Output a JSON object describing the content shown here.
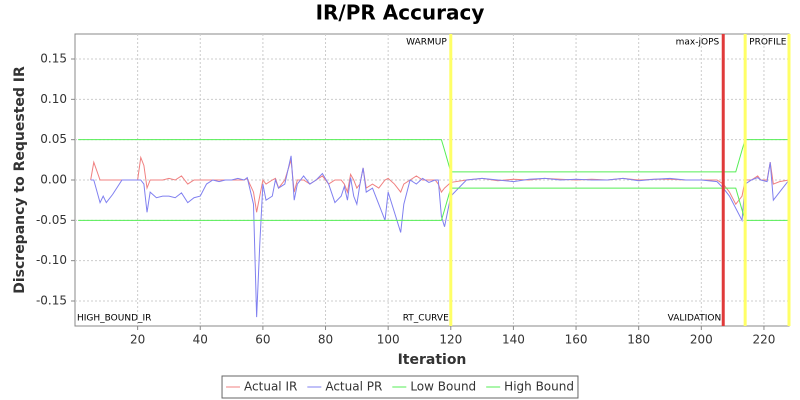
{
  "chart_data": {
    "type": "line",
    "title": "IR/PR Accuracy",
    "x_label": "Iteration",
    "y_label": "Discrepancy to Requested IR",
    "xlim": [
      0,
      228
    ],
    "xticks": [
      20,
      40,
      60,
      80,
      100,
      120,
      140,
      160,
      180,
      200,
      220
    ],
    "ylim": [
      -0.181,
      0.181
    ],
    "yticks": [
      -0.15,
      {
        "value": -0.1,
        "label": "-0.10"
      },
      -0.05,
      {
        "value": 0,
        "label": "0.00"
      },
      0.05,
      {
        "value": 0.1,
        "label": "0.10"
      },
      0.15
    ],
    "grid": true,
    "legend": "bottom",
    "x": [
      1,
      5,
      6,
      8,
      9,
      10,
      12,
      15,
      20,
      21,
      22,
      23,
      24,
      26,
      28,
      30,
      32,
      34,
      36,
      38,
      40,
      42,
      44,
      46,
      48,
      50,
      52,
      54,
      55,
      57,
      58,
      59,
      60,
      61,
      63,
      64,
      65,
      67,
      69,
      70,
      71,
      73,
      75,
      77,
      79,
      81,
      83,
      85,
      86,
      87,
      88,
      89,
      90,
      91,
      92,
      93,
      95,
      97,
      99,
      100,
      102,
      104,
      105,
      107,
      109,
      111,
      113,
      115,
      116,
      117,
      118,
      120,
      125,
      130,
      135,
      140,
      145,
      150,
      155,
      160,
      165,
      170,
      175,
      180,
      185,
      190,
      195,
      200,
      205,
      207,
      209,
      211,
      213,
      214,
      216,
      218,
      219,
      221,
      222,
      223,
      225,
      228
    ],
    "series": [
      {
        "name": "Actual IR",
        "color": "#f08080",
        "values": [
          null,
          0,
          0.022,
          0,
          0,
          0,
          0,
          0,
          0,
          0.028,
          0.018,
          -0.01,
          0,
          0,
          0,
          0.002,
          0,
          0.005,
          -0.005,
          0,
          0,
          0,
          0,
          0,
          0,
          0,
          0,
          0,
          0.002,
          -0.015,
          -0.04,
          -0.02,
          0,
          -0.005,
          0,
          0.002,
          -0.01,
          0,
          0.025,
          -0.015,
          0,
          0,
          -0.005,
          0,
          0.005,
          -0.005,
          0,
          0,
          -0.005,
          -0.015,
          0.007,
          0,
          -0.01,
          -0.005,
          0.015,
          -0.01,
          -0.005,
          -0.01,
          0,
          0.002,
          -0.005,
          -0.015,
          -0.005,
          0,
          0.005,
          0,
          0,
          0,
          -0.005,
          -0.015,
          -0.01,
          -0.003,
          0,
          0.002,
          -0.001,
          0.001,
          0,
          0.002,
          0.001,
          0,
          0.001,
          0,
          0.002,
          0,
          0.001,
          0.001,
          0,
          0,
          0,
          -0.005,
          -0.015,
          -0.03,
          -0.02,
          0,
          0,
          0.005,
          0,
          0,
          0.022,
          -0.005,
          -0.002,
          0
        ]
      },
      {
        "name": "Actual PR",
        "color": "#8080f0",
        "values": [
          null,
          0,
          0,
          -0.028,
          -0.02,
          -0.028,
          -0.018,
          0,
          0,
          0,
          -0.005,
          -0.04,
          -0.015,
          -0.022,
          -0.02,
          -0.02,
          -0.022,
          -0.016,
          -0.028,
          -0.022,
          -0.02,
          -0.005,
          0,
          -0.002,
          0,
          0,
          0.002,
          0,
          0.003,
          -0.03,
          -0.17,
          -0.08,
          -0.005,
          -0.025,
          -0.02,
          0,
          -0.01,
          -0.005,
          0.03,
          -0.025,
          -0.005,
          0.005,
          -0.005,
          0,
          0.008,
          -0.005,
          -0.028,
          -0.02,
          -0.008,
          -0.025,
          0.003,
          -0.02,
          -0.03,
          -0.005,
          0.015,
          -0.015,
          -0.01,
          -0.03,
          -0.05,
          -0.015,
          -0.04,
          -0.065,
          -0.03,
          0,
          -0.005,
          0.002,
          -0.003,
          0,
          0,
          -0.045,
          -0.058,
          -0.02,
          0,
          0.002,
          0,
          -0.002,
          0.001,
          0.002,
          0,
          0.001,
          0,
          0,
          0.002,
          -0.001,
          0.001,
          0.002,
          0,
          0,
          -0.002,
          -0.01,
          -0.02,
          -0.035,
          -0.05,
          -0.005,
          0,
          0.003,
          0,
          -0.002,
          0.022,
          -0.025,
          -0.015,
          0
        ]
      },
      {
        "name": "Low Bound",
        "color": "#55ee55",
        "values": [
          -0.05,
          -0.05,
          -0.05,
          -0.05,
          -0.05,
          -0.05,
          -0.05,
          -0.05,
          -0.05,
          -0.05,
          -0.05,
          -0.05,
          -0.05,
          -0.05,
          -0.05,
          -0.05,
          -0.05,
          -0.05,
          -0.05,
          -0.05,
          -0.05,
          -0.05,
          -0.05,
          -0.05,
          -0.05,
          -0.05,
          -0.05,
          -0.05,
          -0.05,
          -0.05,
          -0.05,
          -0.05,
          -0.05,
          -0.05,
          -0.05,
          -0.05,
          -0.05,
          -0.05,
          -0.05,
          -0.05,
          -0.05,
          -0.05,
          -0.05,
          -0.05,
          -0.05,
          -0.05,
          -0.05,
          -0.05,
          -0.05,
          -0.05,
          -0.05,
          -0.05,
          -0.05,
          -0.05,
          -0.05,
          -0.05,
          -0.05,
          -0.05,
          -0.05,
          -0.05,
          -0.05,
          -0.05,
          -0.05,
          -0.05,
          -0.05,
          -0.05,
          -0.05,
          -0.05,
          -0.05,
          -0.05,
          -0.037,
          -0.01,
          -0.01,
          -0.01,
          -0.01,
          -0.01,
          -0.01,
          -0.01,
          -0.01,
          -0.01,
          -0.01,
          -0.01,
          -0.01,
          -0.01,
          -0.01,
          -0.01,
          -0.01,
          -0.01,
          -0.01,
          -0.01,
          -0.01,
          -0.01,
          -0.037,
          -0.05,
          -0.05,
          -0.05,
          -0.05,
          -0.05,
          -0.05,
          -0.05,
          -0.05,
          -0.05
        ]
      },
      {
        "name": "High Bound",
        "color": "#55ee55",
        "values": [
          0.05,
          0.05,
          0.05,
          0.05,
          0.05,
          0.05,
          0.05,
          0.05,
          0.05,
          0.05,
          0.05,
          0.05,
          0.05,
          0.05,
          0.05,
          0.05,
          0.05,
          0.05,
          0.05,
          0.05,
          0.05,
          0.05,
          0.05,
          0.05,
          0.05,
          0.05,
          0.05,
          0.05,
          0.05,
          0.05,
          0.05,
          0.05,
          0.05,
          0.05,
          0.05,
          0.05,
          0.05,
          0.05,
          0.05,
          0.05,
          0.05,
          0.05,
          0.05,
          0.05,
          0.05,
          0.05,
          0.05,
          0.05,
          0.05,
          0.05,
          0.05,
          0.05,
          0.05,
          0.05,
          0.05,
          0.05,
          0.05,
          0.05,
          0.05,
          0.05,
          0.05,
          0.05,
          0.05,
          0.05,
          0.05,
          0.05,
          0.05,
          0.05,
          0.05,
          0.05,
          0.037,
          0.01,
          0.01,
          0.01,
          0.01,
          0.01,
          0.01,
          0.01,
          0.01,
          0.01,
          0.01,
          0.01,
          0.01,
          0.01,
          0.01,
          0.01,
          0.01,
          0.01,
          0.01,
          0.01,
          0.01,
          0.01,
          0.037,
          0.05,
          0.05,
          0.05,
          0.05,
          0.05,
          0.05,
          0.05,
          0.05,
          0.05
        ]
      }
    ],
    "markers": [
      {
        "x": 120,
        "color": "#ffff66",
        "top_label": "WARMUP",
        "top_side": "left",
        "bottom_label": "RT_CURVE"
      },
      {
        "x": 207,
        "color": "#e03a3a",
        "top_label": "max-jOPS",
        "top_side": "left",
        "bottom_label": "VALIDATION"
      },
      {
        "x": 214,
        "color": "#ffff66",
        "top_label": "PROFILE",
        "top_side": "right"
      },
      {
        "x": 228,
        "color": "#ffff66"
      }
    ],
    "annotations": [
      {
        "x": 0,
        "text": "HIGH_BOUND_IR"
      }
    ]
  }
}
